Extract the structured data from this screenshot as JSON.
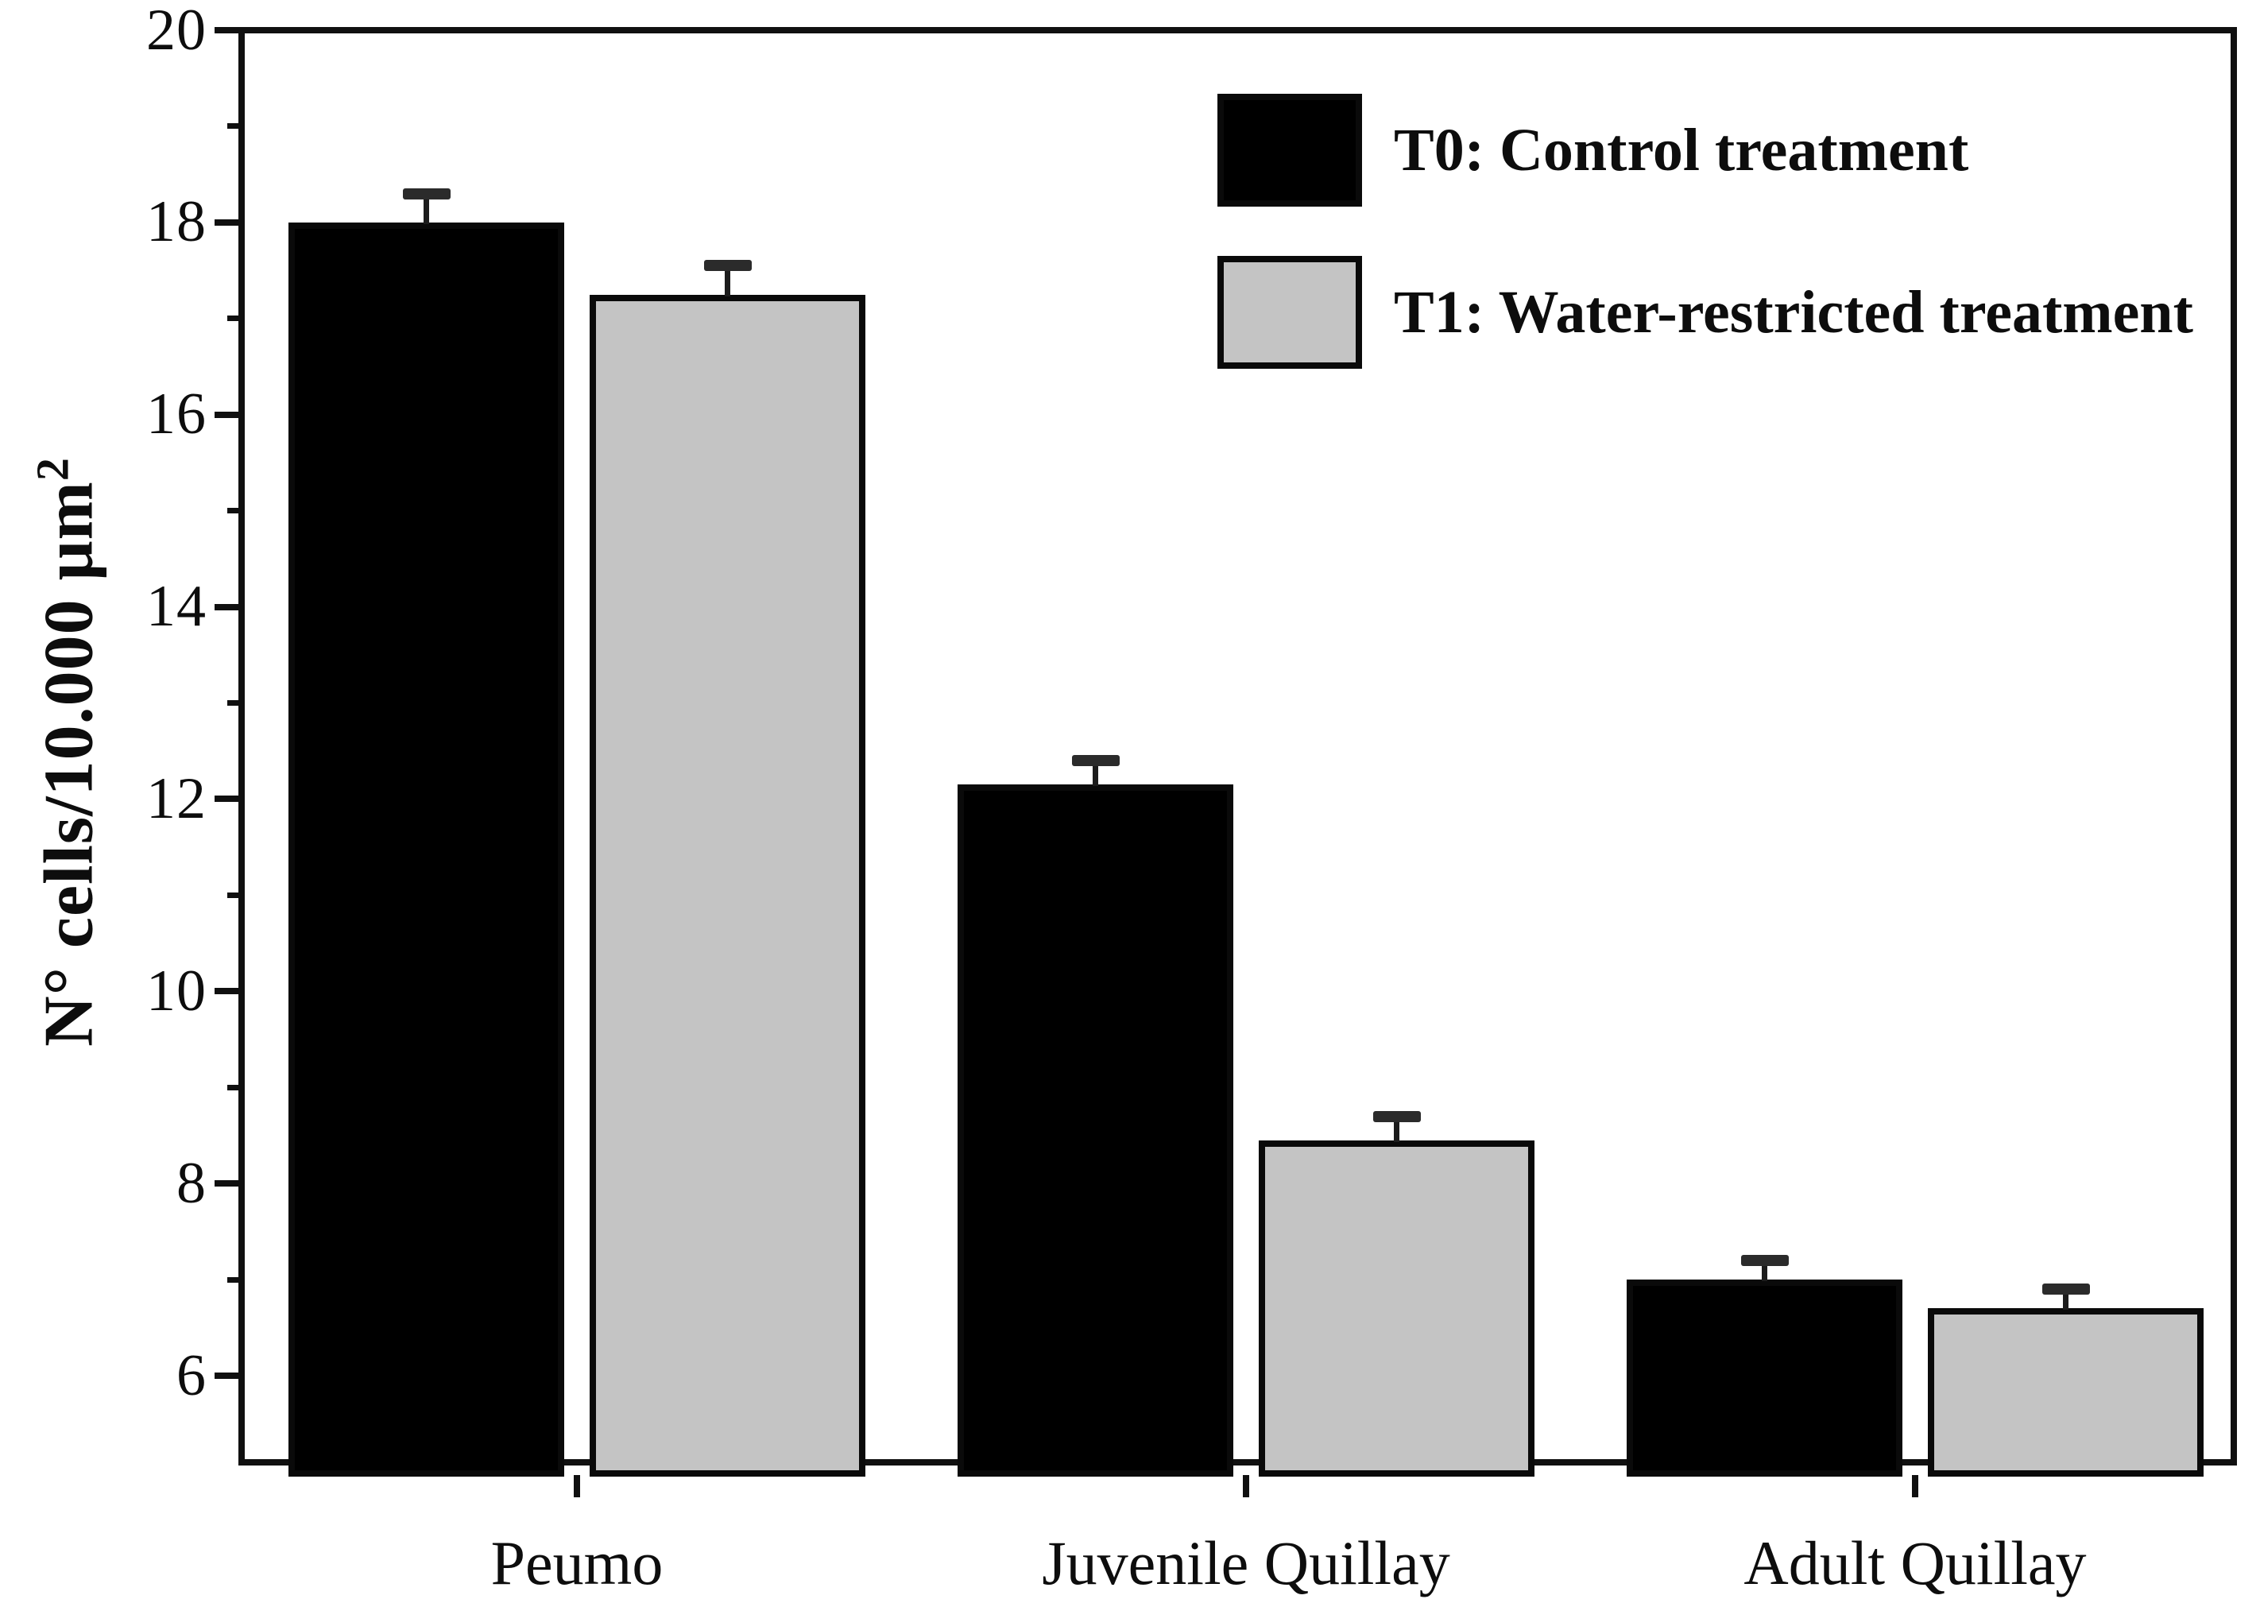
{
  "figure": {
    "background": "#ffffff",
    "frame_color": "#101010"
  },
  "y_axis": {
    "label_main": "N° cells/10.000 μm",
    "label_superscript": "2",
    "min": 5,
    "max": 20,
    "major_ticks": [
      6,
      8,
      10,
      12,
      14,
      16,
      18,
      20
    ],
    "minor_ticks": [
      7,
      9,
      11,
      13,
      15,
      17,
      19
    ]
  },
  "x_axis": {
    "categories": [
      "Peumo",
      "Juvenile Quillay",
      "Adult Quillay"
    ]
  },
  "legend": {
    "items": [
      {
        "label": "T0: Control treatment",
        "color": "#000000",
        "border": "#0a0a0a"
      },
      {
        "label": "T1: Water-restricted treatment",
        "color": "#c4c4c4",
        "border": "#0a0a0a"
      }
    ]
  },
  "chart_data": {
    "type": "bar",
    "categories": [
      "Peumo",
      "Juvenile Quillay",
      "Adult Quillay"
    ],
    "series": [
      {
        "name": "T0: Control treatment",
        "color": "#000000",
        "values": [
          18.0,
          12.15,
          7.0
        ],
        "errors_upper": [
          0.3,
          0.25,
          0.2
        ]
      },
      {
        "name": "T1: Water-restricted treatment",
        "color": "#c4c4c4",
        "values": [
          17.25,
          8.45,
          6.7
        ],
        "errors_upper": [
          0.3,
          0.25,
          0.2
        ]
      }
    ],
    "title": "",
    "xlabel": "",
    "ylabel": "N° cells/10.000 μm²",
    "ylim": [
      5,
      20
    ],
    "major_tick_step": 2,
    "minor_tick_step": 1,
    "grid": false,
    "legend_position": "top-right",
    "error_bars": "upper-only"
  }
}
